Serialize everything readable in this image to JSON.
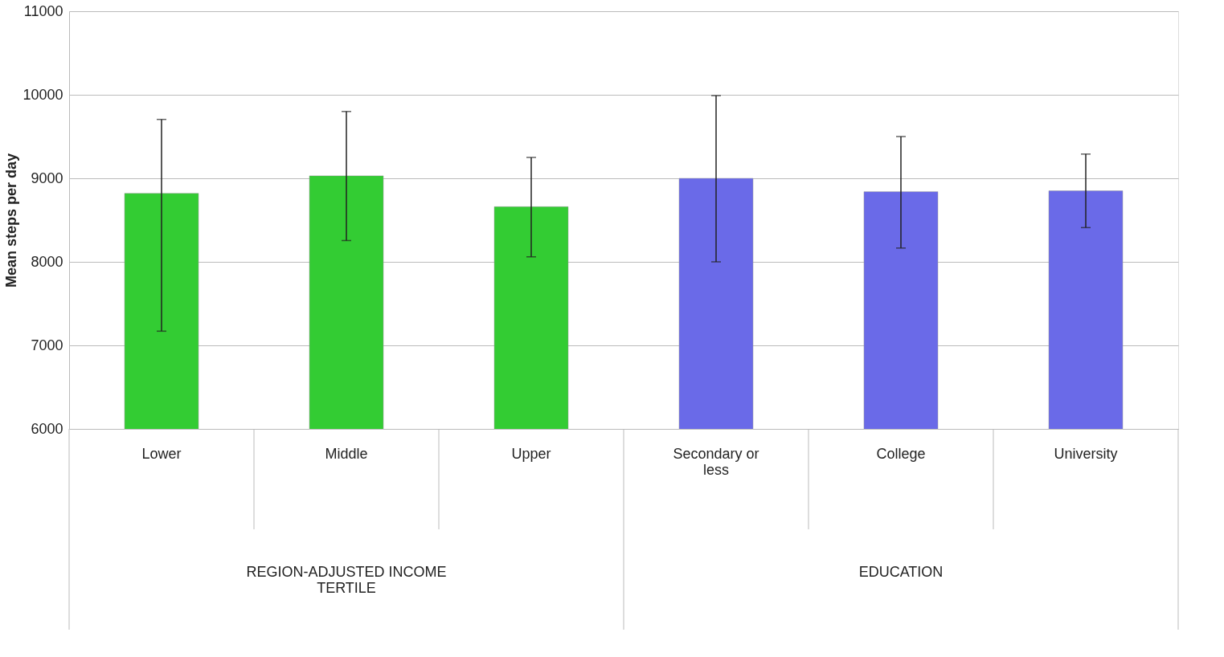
{
  "chart_data": {
    "type": "bar",
    "ylabel": "Mean steps per day",
    "categories": [
      "Lower",
      "Middle",
      "Upper",
      "Secondary or less",
      "College",
      "University"
    ],
    "values": [
      8820,
      9030,
      8660,
      9000,
      8840,
      8850
    ],
    "colors": [
      "#33cc33",
      "#33cc33",
      "#33cc33",
      "#6a6ae8",
      "#6a6ae8",
      "#6a6ae8"
    ],
    "errors": [
      [
        7170,
        9705
      ],
      [
        8255,
        9800
      ],
      [
        8060,
        9250
      ],
      [
        8000,
        9990
      ],
      [
        8165,
        9500
      ],
      [
        8410,
        9290
      ]
    ],
    "ylim": [
      6000,
      11000
    ],
    "yticks": [
      6000,
      7000,
      8000,
      9000,
      10000,
      11000
    ],
    "grid": "y",
    "annotations": [
      "REGION-ADJUSTED INCOME TERTILE",
      "EDUCATION"
    ]
  }
}
